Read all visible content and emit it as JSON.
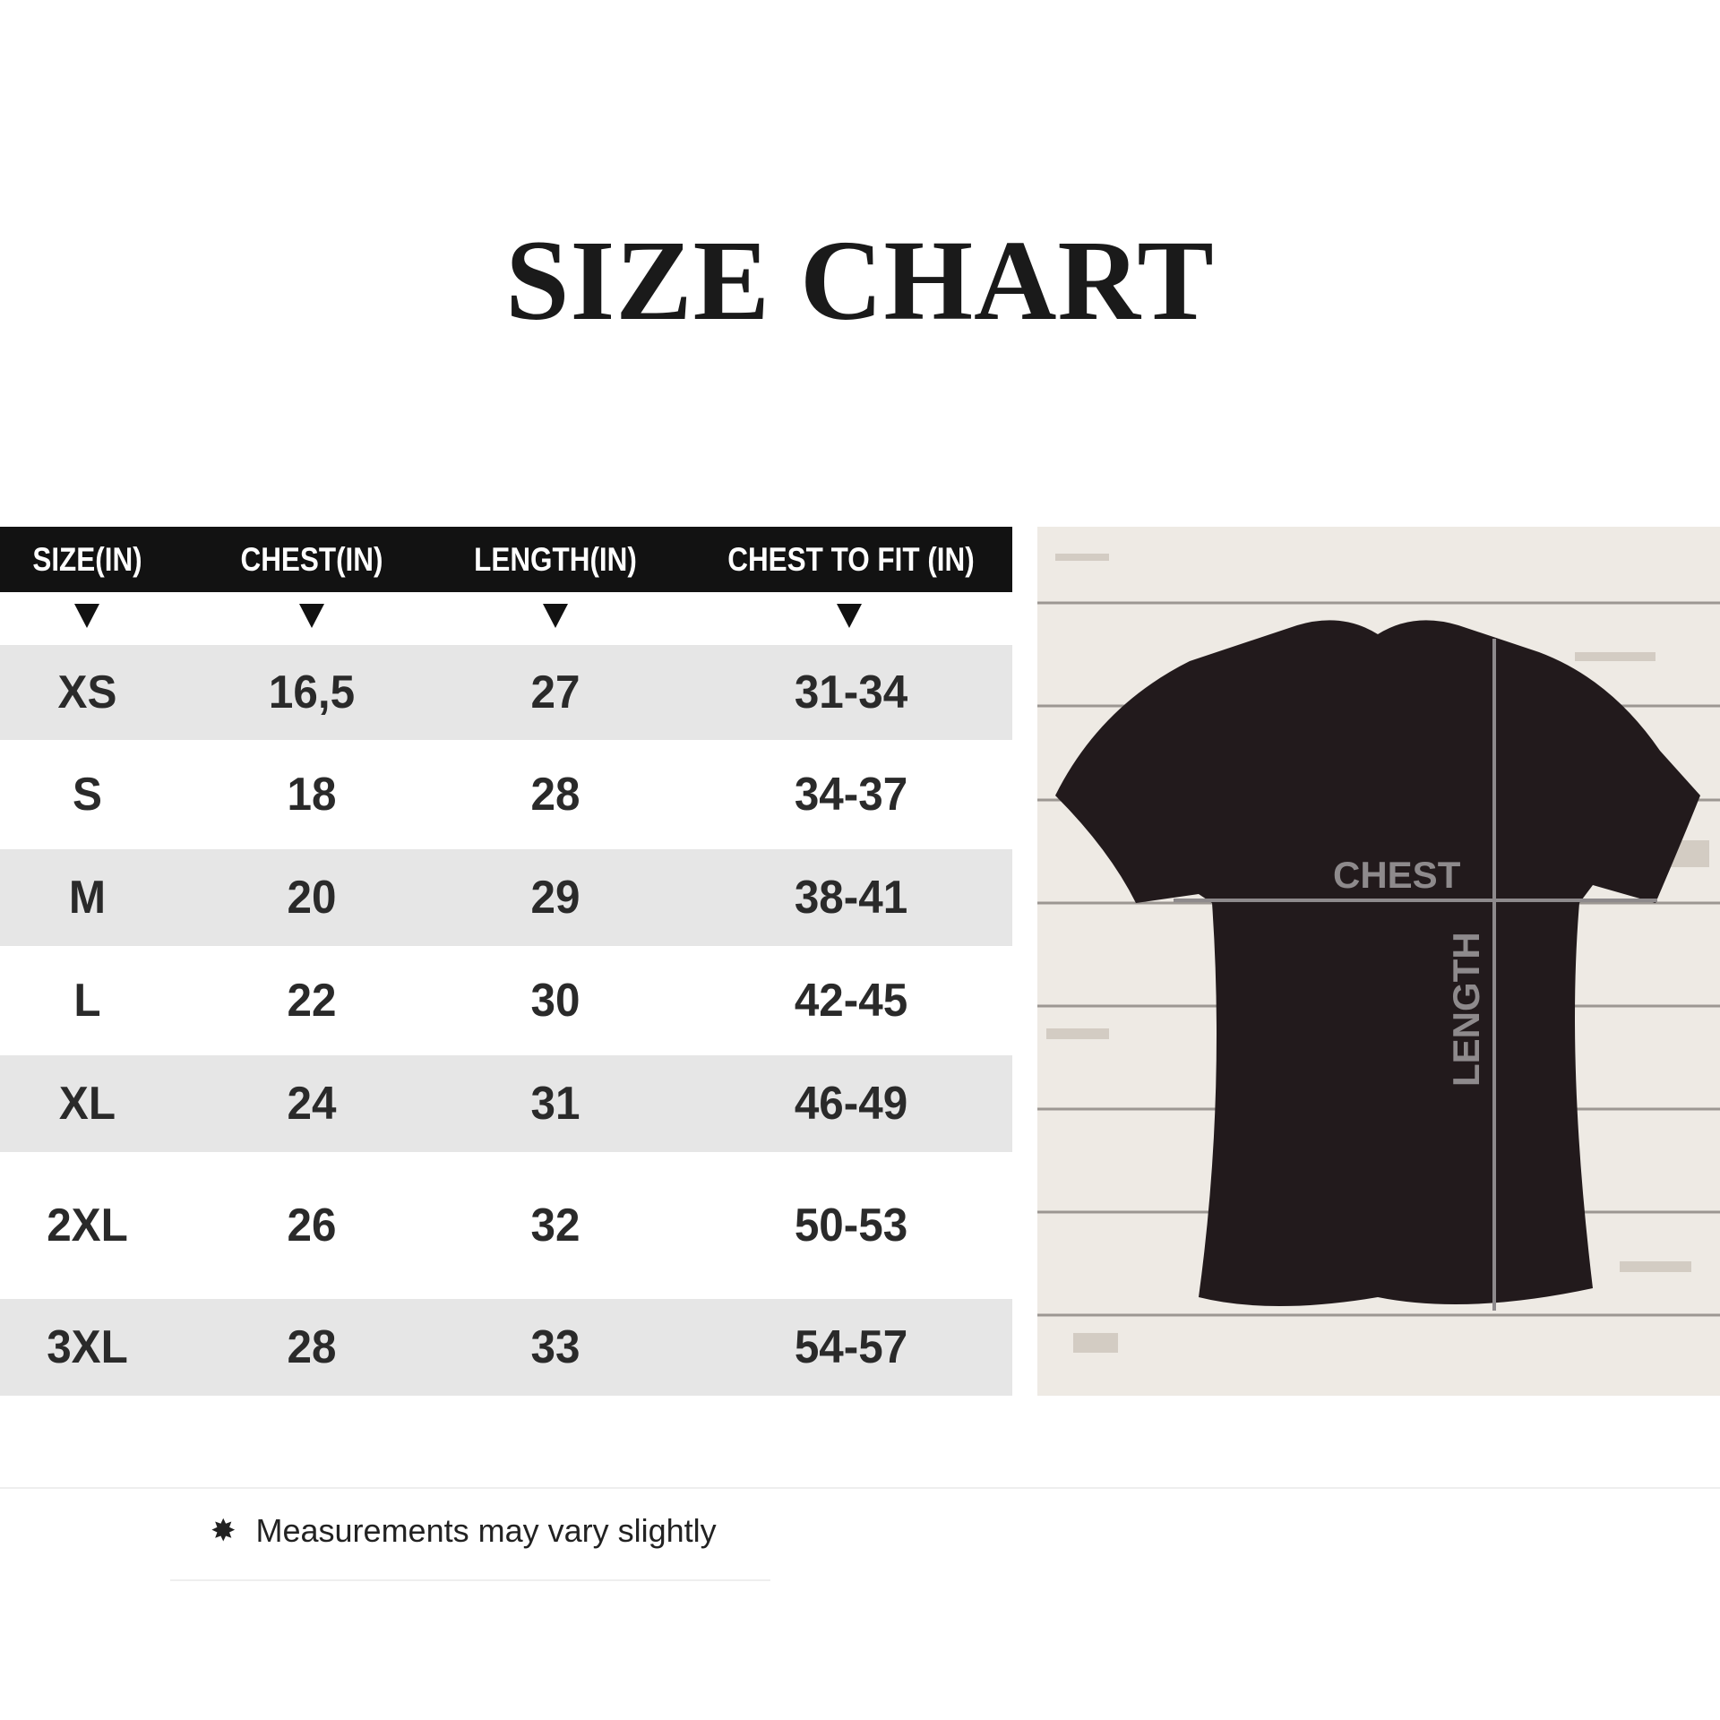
{
  "title": "SIZE CHART",
  "table": {
    "headers": [
      "SIZE(IN)",
      "CHEST(IN)",
      "LENGTH(IN)",
      "CHEST TO FIT (IN)"
    ],
    "rows": [
      [
        "XS",
        "16,5",
        "27",
        "31-34"
      ],
      [
        "S",
        "18",
        "28",
        "34-37"
      ],
      [
        "M",
        "20",
        "29",
        "38-41"
      ],
      [
        "L",
        "22",
        "30",
        "42-45"
      ],
      [
        "XL",
        "24",
        "31",
        "46-49"
      ],
      [
        "2XL",
        "26",
        "32",
        "50-53"
      ],
      [
        "3XL",
        "28",
        "33",
        "54-57"
      ]
    ]
  },
  "photo": {
    "chest_label": "CHEST",
    "length_label": "LENGTH",
    "shirt_color": "#221a1c"
  },
  "footer": {
    "note": "Measurements may vary slightly",
    "icon": "star-burst-icon"
  }
}
